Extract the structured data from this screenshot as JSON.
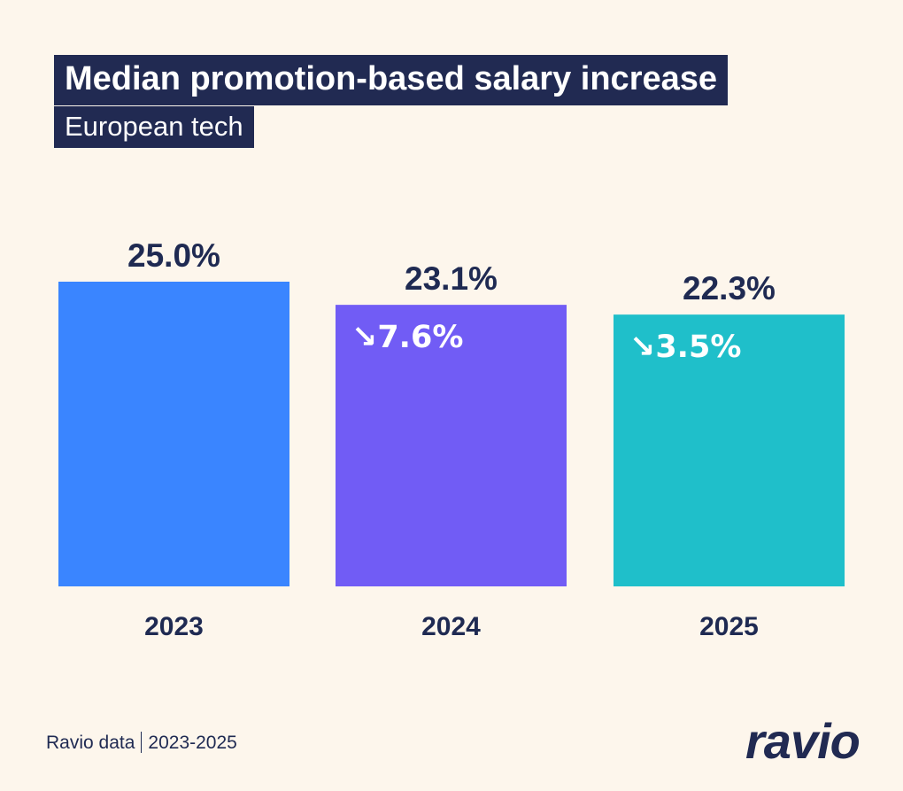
{
  "header": {
    "title": "Median promotion-based salary increase",
    "subtitle": "European tech"
  },
  "footer": {
    "source_label": "Ravio data",
    "period": "2023-2025",
    "logo_text": "ravio"
  },
  "colors": {
    "background": "#fdf6ec",
    "text": "#1f2a52",
    "title_bg": "#212a52"
  },
  "chart_data": {
    "type": "bar",
    "categories": [
      "2023",
      "2024",
      "2025"
    ],
    "values": [
      25.0,
      23.1,
      22.3
    ],
    "value_labels": [
      "25.0%",
      "23.1%",
      "22.3%"
    ],
    "changes": [
      "",
      "↘7.6%",
      "↘3.5%"
    ],
    "colors": [
      "#3a85ff",
      "#715cf5",
      "#1fbfca"
    ],
    "title": "Median promotion-based salary increase",
    "subtitle": "European tech",
    "xlabel": "",
    "ylabel": "",
    "ylim": [
      0,
      25.0
    ],
    "grid": false,
    "legend": "none"
  }
}
